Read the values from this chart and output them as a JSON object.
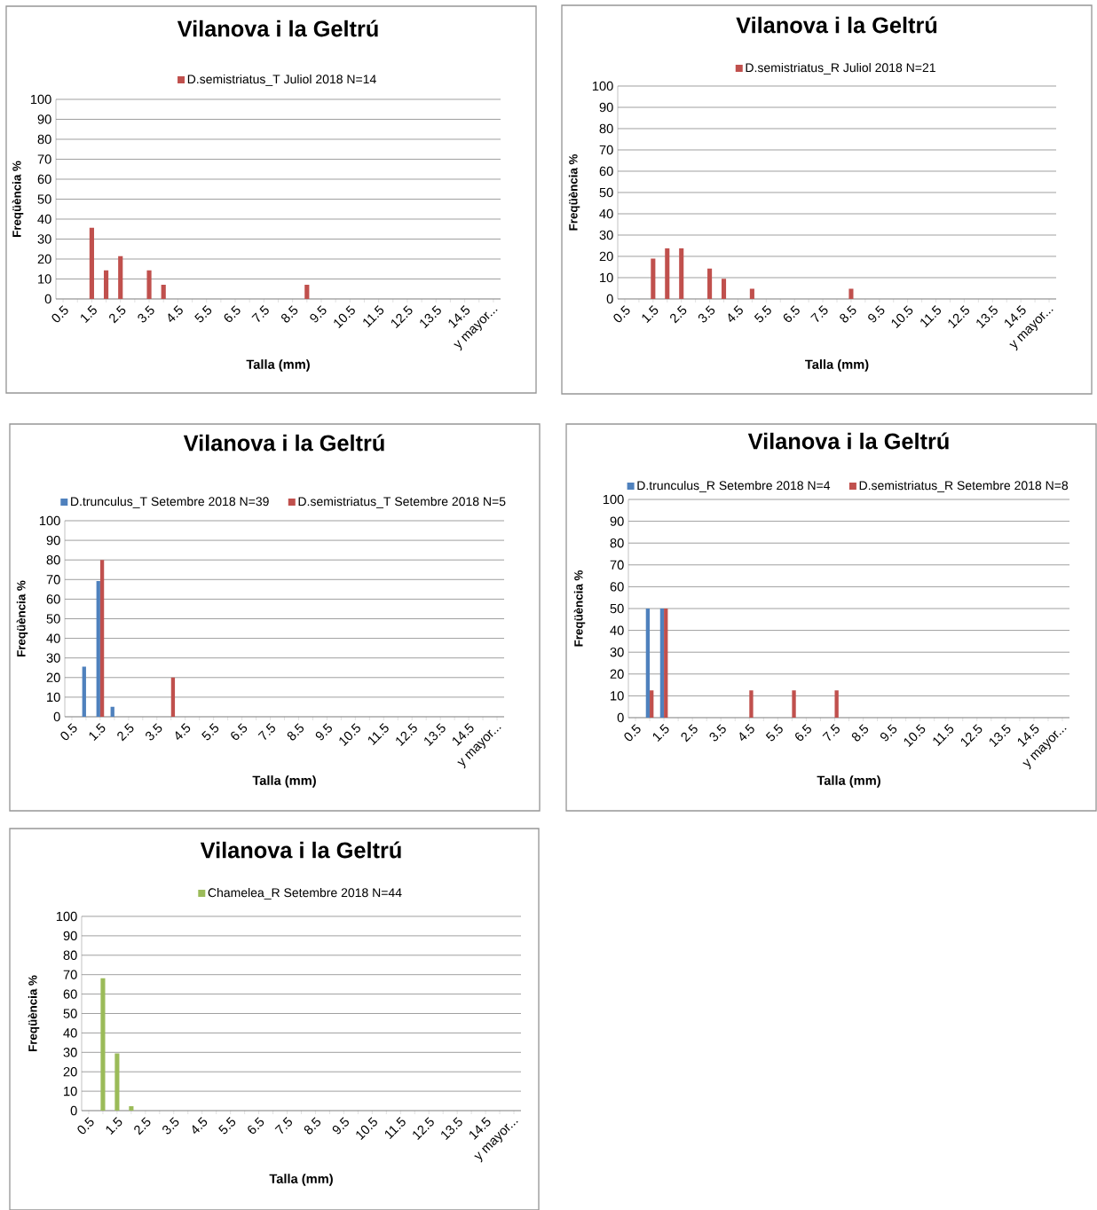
{
  "chart_data": [
    {
      "type": "bar",
      "title": "Vilanova i la Geltrú",
      "xlabel": "Talla (mm)",
      "ylabel": "Freqüència %",
      "legend": "top",
      "grid": "y",
      "ylim": [
        0,
        100
      ],
      "yticks": [
        0,
        10,
        20,
        30,
        40,
        50,
        60,
        70,
        80,
        90,
        100
      ],
      "categories": [
        "0.5",
        null,
        "1.5",
        null,
        "2.5",
        null,
        "3.5",
        null,
        "4.5",
        null,
        "5.5",
        null,
        "6.5",
        null,
        "7.5",
        null,
        "8.5",
        null,
        "9.5",
        null,
        "10.5",
        null,
        "11.5",
        null,
        "12.5",
        null,
        "13.5",
        null,
        "14.5",
        null,
        "y mayor..."
      ],
      "series": [
        {
          "name": "D.semistriatus_T Juliol 2018 N=14",
          "color": "#c0504d",
          "values": [
            0,
            0,
            35.7,
            14.3,
            21.4,
            0,
            14.3,
            7.1,
            0,
            0,
            0,
            0,
            0,
            0,
            0,
            0,
            0,
            7.1,
            0,
            0,
            0,
            0,
            0,
            0,
            0,
            0,
            0,
            0,
            0,
            0,
            0
          ]
        }
      ]
    },
    {
      "type": "bar",
      "title": "Vilanova i la Geltrú",
      "xlabel": "Talla (mm)",
      "ylabel": "Freqüència %",
      "legend": "top",
      "grid": "y",
      "ylim": [
        0,
        100
      ],
      "yticks": [
        0,
        10,
        20,
        30,
        40,
        50,
        60,
        70,
        80,
        90,
        100
      ],
      "categories": [
        "0.5",
        null,
        "1.5",
        null,
        "2.5",
        null,
        "3.5",
        null,
        "4.5",
        null,
        "5.5",
        null,
        "6.5",
        null,
        "7.5",
        null,
        "8.5",
        null,
        "9.5",
        null,
        "10.5",
        null,
        "11.5",
        null,
        "12.5",
        null,
        "13.5",
        null,
        "14.5",
        null,
        "y mayor..."
      ],
      "series": [
        {
          "name": "D.semistriatus_R Juliol 2018 N=21",
          "color": "#c0504d",
          "values": [
            0,
            0,
            19.0,
            23.8,
            23.8,
            0,
            14.3,
            9.5,
            0,
            4.8,
            0,
            0,
            0,
            0,
            0,
            0,
            4.8,
            0,
            0,
            0,
            0,
            0,
            0,
            0,
            0,
            0,
            0,
            0,
            0,
            0,
            0
          ]
        }
      ]
    },
    {
      "type": "bar",
      "title": "Vilanova i la Geltrú",
      "xlabel": "Talla (mm)",
      "ylabel": "Freqüència %",
      "legend": "top",
      "grid": "y",
      "ylim": [
        0,
        100
      ],
      "yticks": [
        0,
        10,
        20,
        30,
        40,
        50,
        60,
        70,
        80,
        90,
        100
      ],
      "categories": [
        "0.5",
        null,
        "1.5",
        null,
        "2.5",
        null,
        "3.5",
        null,
        "4.5",
        null,
        "5.5",
        null,
        "6.5",
        null,
        "7.5",
        null,
        "8.5",
        null,
        "9.5",
        null,
        "10.5",
        null,
        "11.5",
        null,
        "12.5",
        null,
        "13.5",
        null,
        "14.5",
        null,
        "y mayor..."
      ],
      "series": [
        {
          "name": "D.trunculus_T Setembre 2018 N=39",
          "color": "#4f81bd",
          "values": [
            0,
            25.6,
            69.2,
            5.1,
            0,
            0,
            0,
            0,
            0,
            0,
            0,
            0,
            0,
            0,
            0,
            0,
            0,
            0,
            0,
            0,
            0,
            0,
            0,
            0,
            0,
            0,
            0,
            0,
            0,
            0,
            0
          ]
        },
        {
          "name": "D.semistriatus_T  Setembre 2018  N=5",
          "color": "#c0504d",
          "values": [
            0,
            0,
            80,
            0,
            0,
            0,
            0,
            20,
            0,
            0,
            0,
            0,
            0,
            0,
            0,
            0,
            0,
            0,
            0,
            0,
            0,
            0,
            0,
            0,
            0,
            0,
            0,
            0,
            0,
            0,
            0
          ]
        }
      ]
    },
    {
      "type": "bar",
      "title": "Vilanova i la Geltrú",
      "xlabel": "Talla (mm)",
      "ylabel": "Freqüència %",
      "legend": "top",
      "grid": "y",
      "ylim": [
        0,
        100
      ],
      "yticks": [
        0,
        10,
        20,
        30,
        40,
        50,
        60,
        70,
        80,
        90,
        100
      ],
      "categories": [
        "0.5",
        null,
        "1.5",
        null,
        "2.5",
        null,
        "3.5",
        null,
        "4.5",
        null,
        "5.5",
        null,
        "6.5",
        null,
        "7.5",
        null,
        "8.5",
        null,
        "9.5",
        null,
        "10.5",
        null,
        "11.5",
        null,
        "12.5",
        null,
        "13.5",
        null,
        "14.5",
        null,
        "y mayor..."
      ],
      "series": [
        {
          "name": "D.trunculus_R Setembre 2018 N=4",
          "color": "#4f81bd",
          "values": [
            0,
            50,
            50,
            0,
            0,
            0,
            0,
            0,
            0,
            0,
            0,
            0,
            0,
            0,
            0,
            0,
            0,
            0,
            0,
            0,
            0,
            0,
            0,
            0,
            0,
            0,
            0,
            0,
            0,
            0,
            0
          ]
        },
        {
          "name": "D.semistriatus_R Setembre 2018 N=8",
          "color": "#c0504d",
          "values": [
            0,
            12.5,
            50,
            0,
            0,
            0,
            0,
            0,
            12.5,
            0,
            0,
            12.5,
            0,
            0,
            12.5,
            0,
            0,
            0,
            0,
            0,
            0,
            0,
            0,
            0,
            0,
            0,
            0,
            0,
            0,
            0,
            0
          ]
        }
      ]
    },
    {
      "type": "bar",
      "title": "Vilanova i la Geltrú",
      "xlabel": "Talla (mm)",
      "ylabel": "Freqüència %",
      "legend": "top",
      "grid": "y",
      "ylim": [
        0,
        100
      ],
      "yticks": [
        0,
        10,
        20,
        30,
        40,
        50,
        60,
        70,
        80,
        90,
        100
      ],
      "categories": [
        "0.5",
        null,
        "1.5",
        null,
        "2.5",
        null,
        "3.5",
        null,
        "4.5",
        null,
        "5.5",
        null,
        "6.5",
        null,
        "7.5",
        null,
        "8.5",
        null,
        "9.5",
        null,
        "10.5",
        null,
        "11.5",
        null,
        "12.5",
        null,
        "13.5",
        null,
        "14.5",
        null,
        "y mayor..."
      ],
      "series": [
        {
          "name": "Chamelea_R Setembre 2018 N=44",
          "color": "#9bbb59",
          "values": [
            0,
            68.2,
            29.5,
            2.3,
            0,
            0,
            0,
            0,
            0,
            0,
            0,
            0,
            0,
            0,
            0,
            0,
            0,
            0,
            0,
            0,
            0,
            0,
            0,
            0,
            0,
            0,
            0,
            0,
            0,
            0,
            0
          ]
        }
      ]
    }
  ]
}
